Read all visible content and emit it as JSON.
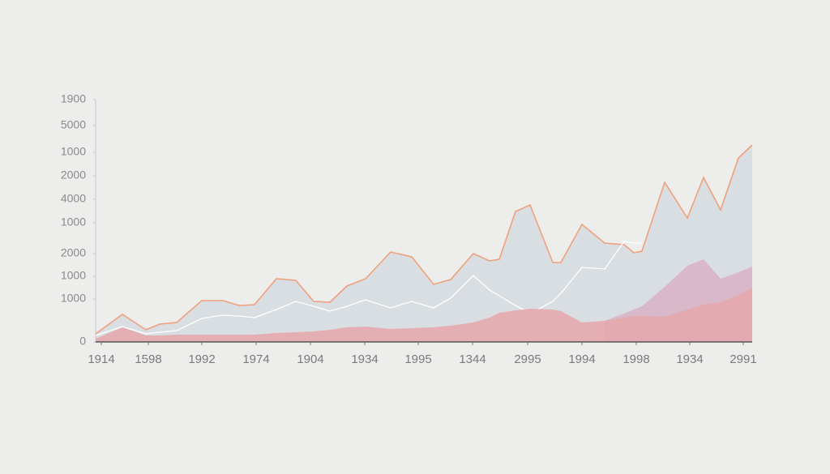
{
  "chart_data": {
    "type": "area",
    "x": [
      0,
      33,
      62,
      79,
      100,
      131,
      157,
      177,
      196,
      223,
      247,
      269,
      289,
      310,
      333,
      364,
      390,
      417,
      438,
      466,
      486,
      498,
      518,
      536,
      564,
      574,
      600,
      628,
      652,
      664,
      674,
      702,
      730,
      750,
      771,
      793,
      810
    ],
    "xlim": [
      0,
      810
    ],
    "xticks": [
      {
        "value": 7,
        "label": "1914"
      },
      {
        "value": 65,
        "label": "1598"
      },
      {
        "value": 131,
        "label": "1992"
      },
      {
        "value": 198,
        "label": "1974"
      },
      {
        "value": 265,
        "label": "1904"
      },
      {
        "value": 332,
        "label": "1934"
      },
      {
        "value": 398,
        "label": "1995"
      },
      {
        "value": 465,
        "label": "1344"
      },
      {
        "value": 533,
        "label": "2995"
      },
      {
        "value": 600,
        "label": "1994"
      },
      {
        "value": 667,
        "label": "1998"
      },
      {
        "value": 733,
        "label": "1934"
      },
      {
        "value": 799,
        "label": "2991"
      }
    ],
    "ylim": [
      0,
      299
    ],
    "yticks": [
      0,
      {
        "value": 53,
        "label": "1000"
      },
      {
        "value": 81,
        "label": "1000"
      },
      {
        "value": 109,
        "label": "2000"
      },
      {
        "value": 147,
        "label": "1000"
      },
      {
        "value": 176,
        "label": "4000"
      },
      {
        "value": 205,
        "label": "2000"
      },
      {
        "value": 234,
        "label": "1000"
      },
      {
        "value": 267,
        "label": "5000"
      },
      {
        "value": 299,
        "label": "1900"
      }
    ],
    "series": [
      {
        "color": "#d6dce1",
        "line_color": "#f0a07c",
        "fill": true,
        "values": [
          10,
          34,
          15,
          22,
          24,
          51,
          51,
          45,
          46,
          78,
          76,
          50,
          49,
          69,
          78,
          111,
          105,
          71,
          77,
          109,
          100,
          102,
          161,
          169,
          98,
          98,
          145,
          122,
          120,
          110,
          112,
          197,
          153,
          203,
          163,
          227,
          243
        ]
      },
      {
        "color": "#ffffff",
        "fill": false,
        "values": [
          8,
          19,
          10,
          12,
          14,
          29,
          33,
          32,
          30,
          40,
          50,
          44,
          38,
          44,
          52,
          42,
          50,
          42,
          54,
          82,
          64,
          57,
          45,
          35,
          50,
          60,
          92,
          90,
          124,
          122,
          122,
          null,
          null,
          null,
          null,
          null,
          null
        ]
      },
      {
        "color": "#d7b4c6",
        "fill": true,
        "values": [
          null,
          null,
          null,
          null,
          null,
          null,
          null,
          null,
          null,
          null,
          null,
          null,
          null,
          null,
          null,
          null,
          null,
          null,
          null,
          null,
          null,
          null,
          null,
          null,
          null,
          null,
          null,
          26,
          35,
          40,
          44,
          68,
          94,
          102,
          78,
          86,
          93
        ]
      },
      {
        "color": "#e6a8ad",
        "fill": true,
        "values": [
          4,
          18,
          8,
          8,
          9,
          9,
          9,
          9,
          9,
          11,
          12,
          13,
          15,
          18,
          19,
          16,
          17,
          18,
          20,
          24,
          30,
          36,
          39,
          41,
          40,
          38,
          24,
          26,
          30,
          32,
          32,
          31,
          40,
          46,
          49,
          58,
          67
        ]
      }
    ]
  }
}
